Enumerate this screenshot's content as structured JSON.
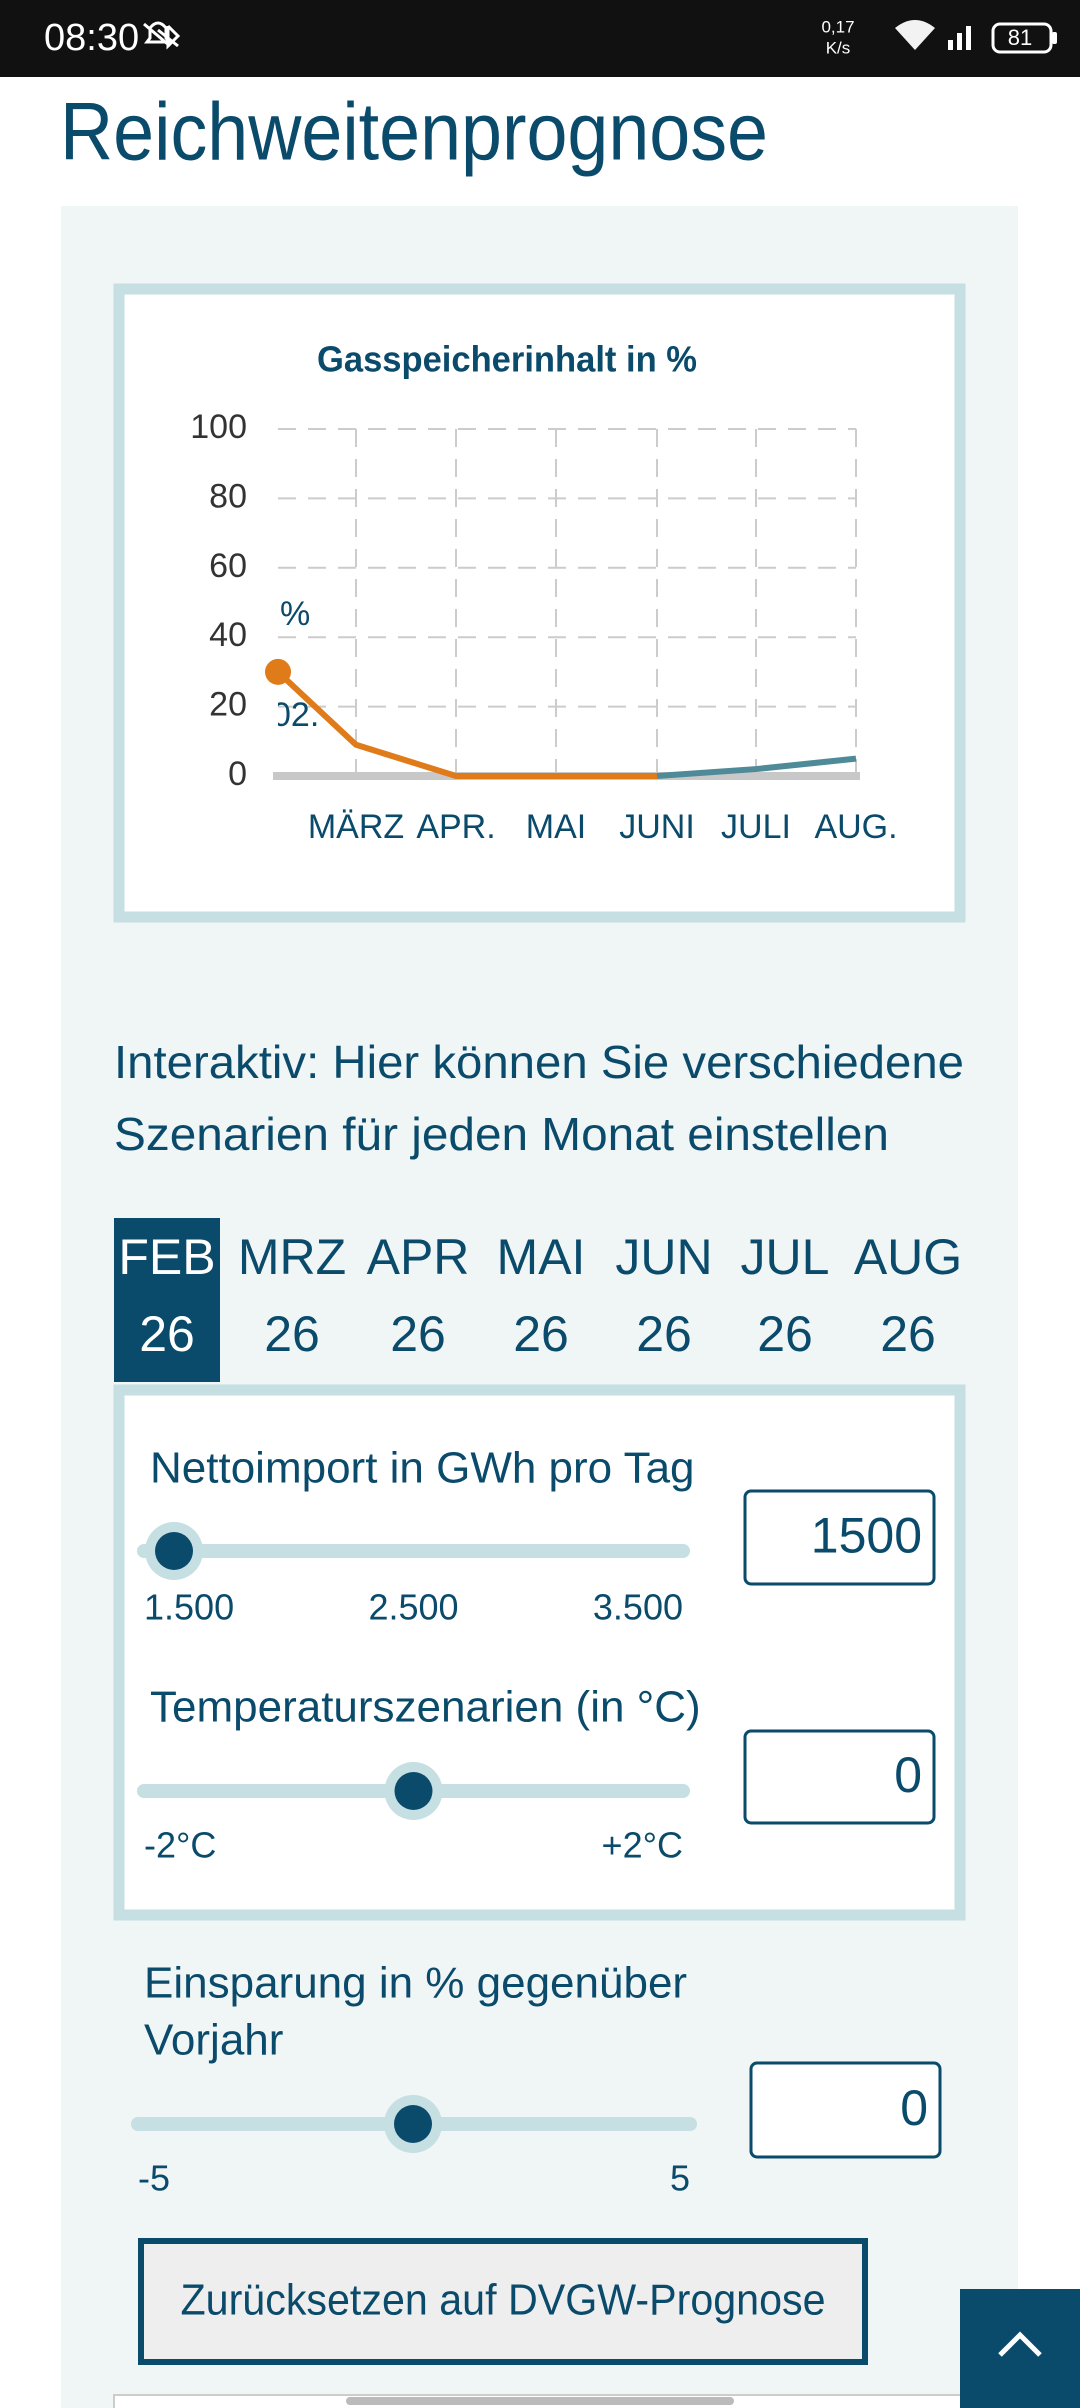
{
  "status_bar": {
    "time": "08:30",
    "network_speed": "0,17",
    "network_unit": "K/s",
    "battery": "81"
  },
  "header": {
    "title": "Reichweitenprognose"
  },
  "chart_data": {
    "type": "line",
    "title": "Gasspeicherinhalt in %",
    "categories": [
      null,
      "MÄRZ",
      "APR.",
      "MAI",
      "JUNI",
      "JULI",
      "AUG."
    ],
    "series": [
      {
        "color": "#e07b1a",
        "values": [
          30,
          9,
          0,
          0,
          0,
          null,
          null
        ]
      },
      {
        "color": "#4f8a99",
        "values": [
          null,
          null,
          null,
          null,
          0,
          2,
          5
        ]
      }
    ],
    "annotations": [
      "%",
      "02."
    ],
    "ylim": [
      0,
      100
    ],
    "yticks": [
      0,
      20,
      40,
      60,
      80,
      100
    ],
    "grid": true
  },
  "interactive": {
    "intro_lines": [
      "Interaktiv: Hier können Sie verschiedene",
      "Szenarien für jeden Monat einstellen"
    ],
    "tabs": [
      {
        "month": "FEB",
        "year": "26"
      },
      {
        "month": "MRZ",
        "year": "26"
      },
      {
        "month": "APR",
        "year": "26"
      },
      {
        "month": "MAI",
        "year": "26"
      },
      {
        "month": "JUN",
        "year": "26"
      },
      {
        "month": "JUL",
        "year": "26"
      },
      {
        "month": "AUG",
        "year": "26"
      }
    ],
    "selected_tab": 0,
    "sliders": [
      {
        "label": [
          "Nettoimport in GWh pro Tag"
        ],
        "range": [
          1500,
          3500
        ],
        "ticks": [
          {
            "value": 1500,
            "label": "1.500"
          },
          {
            "value": 2500,
            "label": "2.500"
          },
          {
            "value": 3500,
            "label": "3.500"
          }
        ],
        "value": 1500
      },
      {
        "label": [
          "Temperaturszenarien (in °C)"
        ],
        "range": [
          -2,
          2
        ],
        "ticks": [
          {
            "value": -2,
            "label": "-2°C"
          },
          {
            "value": 2,
            "label": "+2°C"
          }
        ],
        "value": 0
      },
      {
        "label": [
          "Einsparung in % gegenüber",
          "Vorjahr"
        ],
        "range": [
          -5,
          5
        ],
        "ticks": [
          -5,
          5
        ],
        "value": 0
      }
    ],
    "reset_button": "Zurücksetzen auf DVGW-Prognose"
  }
}
